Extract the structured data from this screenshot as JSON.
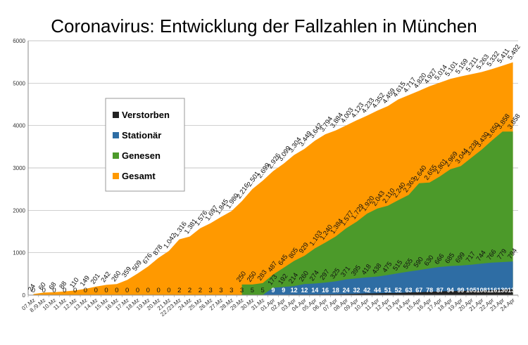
{
  "chart_data": {
    "type": "area",
    "title": "Coronavirus: Entwicklung der Fallzahlen in München",
    "xlabel": "",
    "ylabel": "",
    "ylim": [
      0,
      6000
    ],
    "yticks": [
      0,
      1000,
      2000,
      3000,
      4000,
      5000,
      6000
    ],
    "grid": true,
    "legend_position": "left-middle",
    "categories": [
      "07.Mz",
      "8./9.Mz",
      "10.Mz",
      "11.Mz",
      "12.Mz",
      "13.Mz",
      "14.Mz",
      "15.Mz",
      "16.Mz",
      "17.Mz",
      "18.Mz",
      "19.Mz",
      "20.Mz",
      "21.Mz",
      "22./23.Mz",
      "24.Mz",
      "25.Mz",
      "26.Mz",
      "27.Mz",
      "28.Mz",
      "29.Mz",
      "30.Mz",
      "31.Mz",
      "01.Apr",
      "02.Apr",
      "03.Apr",
      "04.Apr",
      "05.Apr",
      "06.Apr",
      "07.Apr",
      "08.Apr",
      "09.Apr",
      "10.Apr",
      "11.Apr",
      "12.Apr",
      "13.Apr",
      "14.Apr",
      "15.Apr",
      "16.Apr",
      "17.Apr",
      "18.Apr",
      "19.Apr",
      "20.Apr",
      "21.Apr",
      "22.Apr",
      "23.Apr",
      "24.Apr"
    ],
    "series": [
      {
        "name": "Gesamt",
        "color": "#ff9900",
        "values": [
          24,
          60,
          68,
          88,
          110,
          149,
          201,
          242,
          260,
          359,
          509,
          676,
          878,
          1042,
          1316,
          1381,
          1576,
          1697,
          1845,
          1980,
          2216,
          2501,
          2699,
          2926,
          3099,
          3304,
          3449,
          3642,
          3794,
          3884,
          4003,
          4123,
          4233,
          4352,
          4459,
          4615,
          4717,
          4820,
          4927,
          5014,
          5101,
          5159,
          5211,
          5263,
          5332,
          5411,
          5492
        ],
        "labels": [
          "24",
          "60",
          "68",
          "88",
          "110",
          "149",
          "201",
          "242",
          "260",
          "359",
          "509",
          "676",
          "878",
          "1.042",
          "1.316",
          "1.381",
          "1.576",
          "1.697",
          "1.845",
          "1.980",
          "2.216",
          "2.501",
          "2.699",
          "2.926",
          "3.099",
          "3.304",
          "3.449",
          "3.642",
          "3.794",
          "3.884",
          "4.003",
          "4.123",
          "4.233",
          "4.352",
          "4.459",
          "4.615",
          "4.717",
          "4.820",
          "4.927",
          "5.014",
          "5.101",
          "5.159",
          "5.211",
          "5.263",
          "5.332",
          "5.411",
          "5.492"
        ]
      },
      {
        "name": "Genesen",
        "color": "#4c9a2a",
        "values": [
          null,
          null,
          null,
          null,
          null,
          null,
          null,
          null,
          null,
          null,
          null,
          null,
          null,
          null,
          null,
          null,
          null,
          null,
          null,
          null,
          250,
          250,
          283,
          487,
          645,
          805,
          929,
          1103,
          1240,
          1384,
          1577,
          1729,
          1920,
          2043,
          2110,
          2240,
          2363,
          2640,
          2655,
          2801,
          2969,
          3044,
          3238,
          3430,
          3650,
          3858,
          3858
        ],
        "labels": [
          "",
          "",
          "",
          "",
          "",
          "",
          "",
          "",
          "",
          "",
          "",
          "",
          "",
          "",
          "",
          "",
          "",
          "",
          "",
          "",
          "250",
          "250",
          "283",
          "487",
          "645",
          "805",
          "929",
          "1.103",
          "1.240",
          "1.384",
          "1.577",
          "1.729",
          "1.920",
          "2.043",
          "2.110",
          "2.240",
          "2.363",
          "2.640",
          "2.655",
          "2.801",
          "2.969",
          "3.044",
          "3.238",
          "3.430",
          "3.650",
          "3.858",
          "3.858"
        ]
      },
      {
        "name": "Stationär",
        "color": "#2e6da4",
        "values": [
          null,
          null,
          null,
          null,
          null,
          null,
          null,
          null,
          null,
          null,
          null,
          null,
          null,
          null,
          null,
          null,
          null,
          null,
          null,
          null,
          3,
          5,
          5,
          173,
          192,
          214,
          260,
          274,
          297,
          325,
          371,
          395,
          418,
          438,
          475,
          515,
          555,
          590,
          630,
          666,
          685,
          699,
          717,
          744,
          766,
          779,
          794
        ],
        "labels": [
          "",
          "",
          "",
          "",
          "",
          "",
          "",
          "",
          "",
          "",
          "",
          "",
          "",
          "",
          "",
          "",
          "",
          "",
          "",
          "",
          "",
          "",
          "",
          "173",
          "192",
          "214",
          "260",
          "274",
          "297",
          "325",
          "371",
          "395",
          "418",
          "438",
          "475",
          "515",
          "555",
          "590",
          "630",
          "666",
          "685",
          "699",
          "717",
          "744",
          "766",
          "779",
          "794"
        ]
      },
      {
        "name": "Verstorben",
        "color": "#222222",
        "values": [
          0,
          0,
          0,
          0,
          0,
          0,
          0,
          0,
          0,
          0,
          0,
          0,
          0,
          0,
          2,
          2,
          2,
          3,
          3,
          3,
          3,
          5,
          5,
          9,
          9,
          12,
          12,
          14,
          16,
          18,
          24,
          32,
          42,
          44,
          51,
          52,
          63,
          67,
          78,
          87,
          94,
          99,
          105,
          108,
          116,
          130,
          137
        ],
        "labels": [
          "0",
          "0",
          "0",
          "0",
          "0",
          "0",
          "0",
          "0",
          "0",
          "0",
          "0",
          "0",
          "0",
          "0",
          "2",
          "2",
          "2",
          "3",
          "3",
          "3",
          "3",
          "5",
          "5",
          "9",
          "9",
          "12",
          "12",
          "14",
          "16",
          "18",
          "24",
          "32",
          "42",
          "44",
          "51",
          "52",
          "63",
          "67",
          "78",
          "87",
          "94",
          "99",
          "105",
          "108",
          "116",
          "130",
          "137"
        ]
      }
    ]
  }
}
